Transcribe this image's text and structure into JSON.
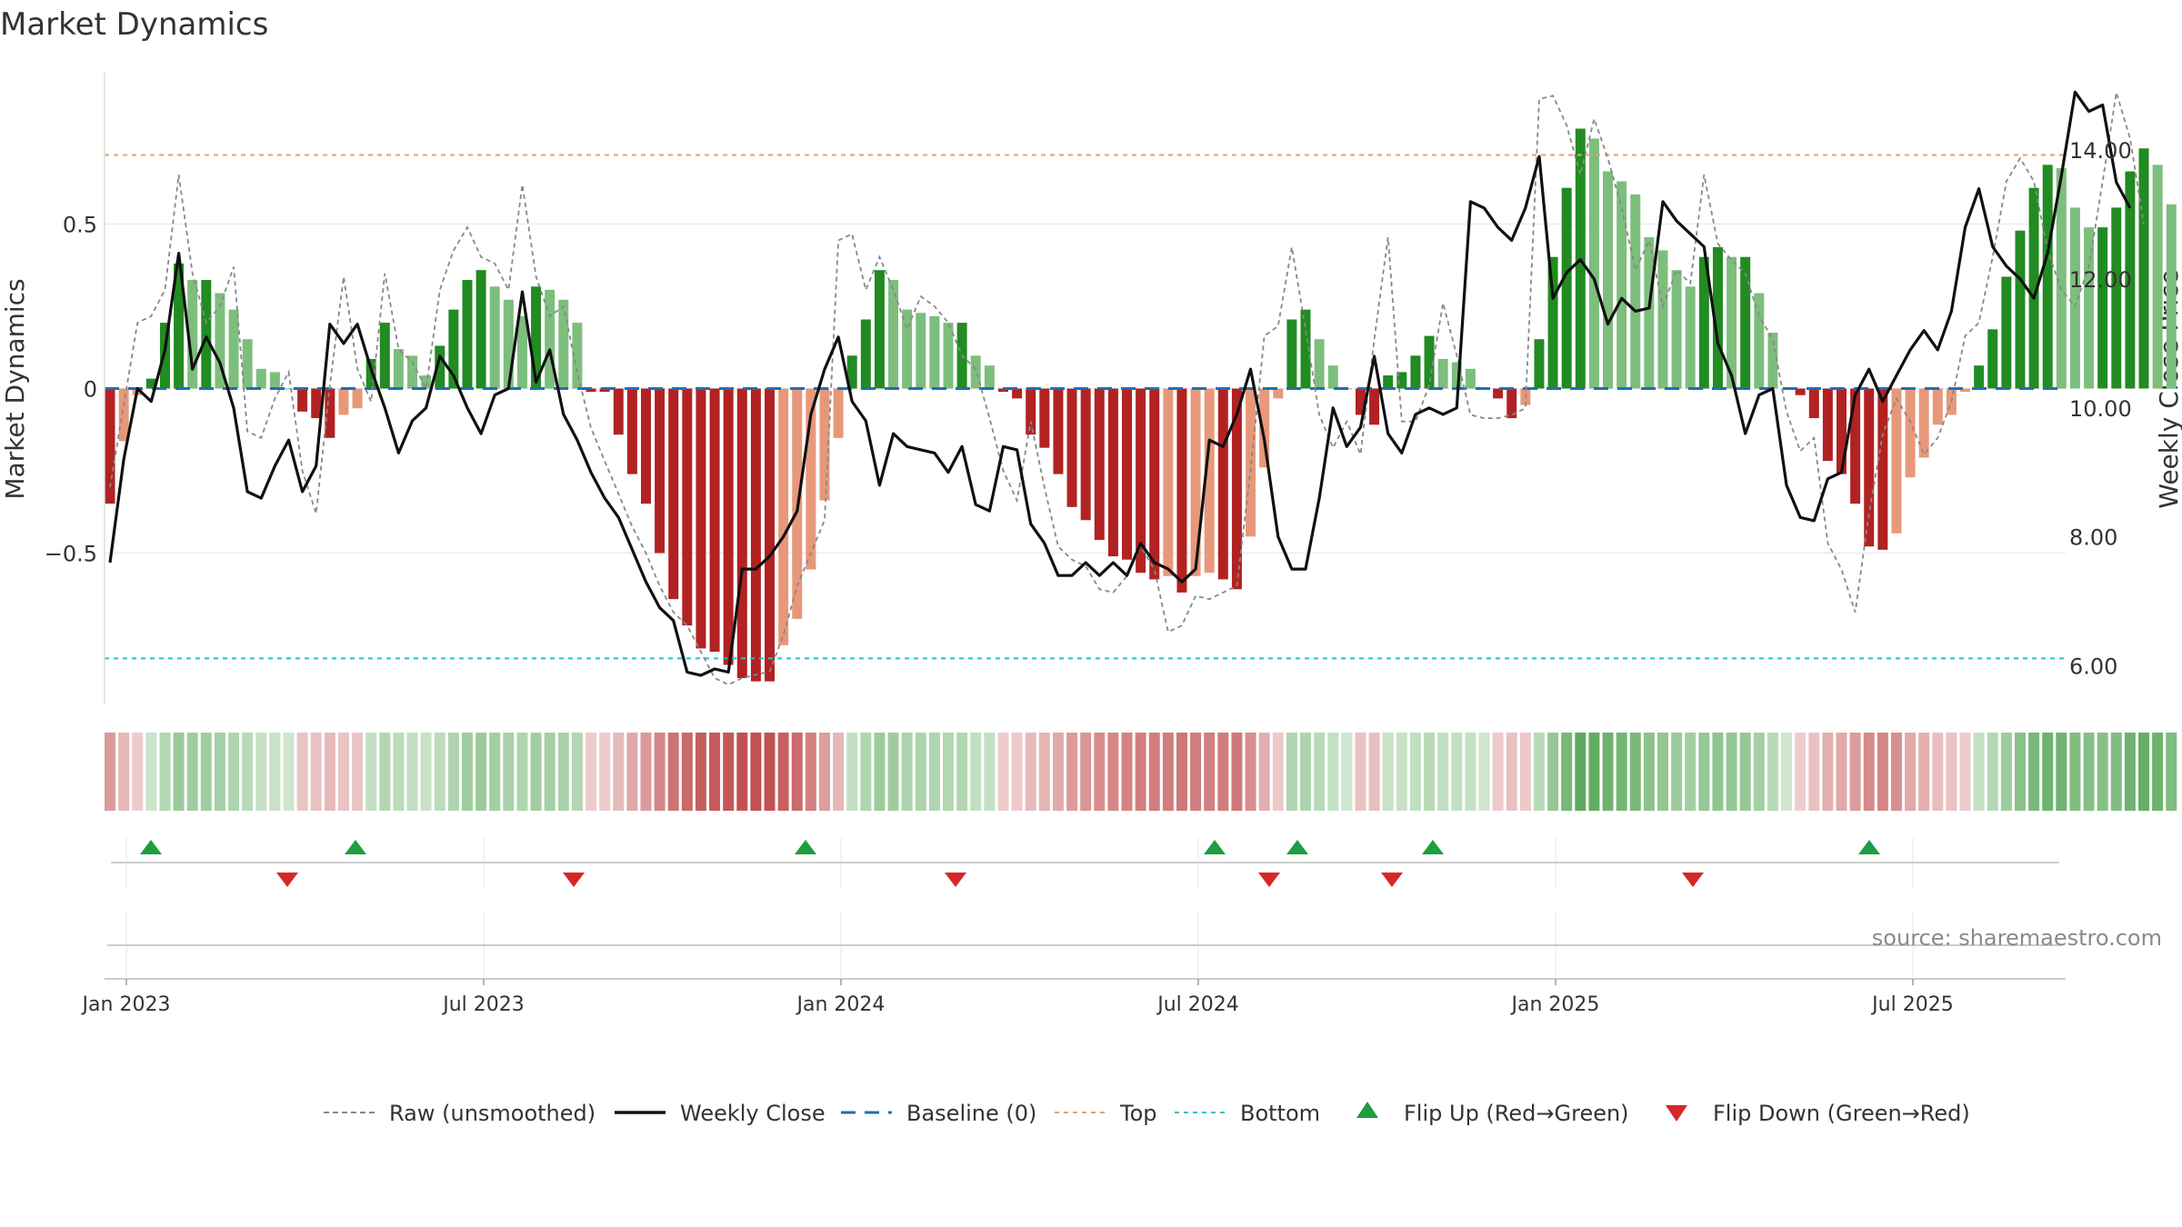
{
  "chart_data": {
    "type": "bar",
    "title": "Market Dynamics",
    "ylabel": "Market Dynamics",
    "y2label": "Weekly Close Price",
    "source": "source: sharemaestro.com",
    "ylim": [
      -0.96,
      0.96
    ],
    "y2lim": [
      5.4,
      15.2
    ],
    "y_ticks": [
      {
        "value": -0.5,
        "label": "−0.5"
      },
      {
        "value": 0,
        "label": "0"
      },
      {
        "value": 0.5,
        "label": "0.5"
      }
    ],
    "y2_ticks": [
      {
        "value": 6,
        "label": "6.00"
      },
      {
        "value": 8,
        "label": "8.00"
      },
      {
        "value": 10,
        "label": "10.00"
      },
      {
        "value": 12,
        "label": "12.00"
      },
      {
        "value": 14,
        "label": "14.00"
      }
    ],
    "x_ticks": [
      {
        "week": 0,
        "label": "Jan 2023"
      },
      {
        "week": 26,
        "label": "Jul 2023"
      },
      {
        "week": 52,
        "label": "Jan 2024"
      },
      {
        "week": 78,
        "label": "Jul 2024"
      },
      {
        "week": 104,
        "label": "Jan 2025"
      },
      {
        "week": 130,
        "label": "Jul 2025"
      }
    ],
    "reference_lines": {
      "baseline": 0,
      "top": 0.71,
      "bottom": -0.82
    },
    "momentum": [
      -0.35,
      -0.16,
      -0.02,
      0.03,
      0.2,
      0.38,
      0.33,
      0.33,
      0.29,
      0.24,
      0.15,
      0.06,
      0.05,
      0.0,
      -0.07,
      -0.09,
      -0.15,
      -0.08,
      -0.06,
      0.09,
      0.2,
      0.12,
      0.1,
      0.04,
      0.13,
      0.24,
      0.33,
      0.36,
      0.31,
      0.27,
      0.22,
      0.31,
      0.3,
      0.27,
      0.2,
      -0.01,
      -0.01,
      -0.14,
      -0.26,
      -0.35,
      -0.5,
      -0.64,
      -0.72,
      -0.79,
      -0.8,
      -0.84,
      -0.88,
      -0.89,
      -0.89,
      -0.78,
      -0.7,
      -0.55,
      -0.34,
      -0.15,
      0.1,
      0.21,
      0.36,
      0.33,
      0.24,
      0.23,
      0.22,
      0.2,
      0.2,
      0.1,
      0.07,
      -0.01,
      -0.03,
      -0.14,
      -0.18,
      -0.26,
      -0.36,
      -0.4,
      -0.46,
      -0.51,
      -0.52,
      -0.56,
      -0.58,
      -0.57,
      -0.62,
      -0.57,
      -0.56,
      -0.58,
      -0.61,
      -0.45,
      -0.24,
      -0.03,
      0.21,
      0.24,
      0.15,
      0.07,
      0.0,
      -0.08,
      -0.11,
      0.04,
      0.05,
      0.1,
      0.16,
      0.09,
      0.08,
      0.06,
      0.0,
      -0.03,
      -0.09,
      -0.05,
      0.15,
      0.4,
      0.61,
      0.79,
      0.76,
      0.66,
      0.63,
      0.59,
      0.46,
      0.42,
      0.36,
      0.31,
      0.4,
      0.43,
      0.4,
      0.4,
      0.29,
      0.17,
      0.0,
      -0.02,
      -0.09,
      -0.22,
      -0.26,
      -0.35,
      -0.48,
      -0.49,
      -0.44,
      -0.27,
      -0.21,
      -0.11,
      -0.08,
      -0.01,
      0.07,
      0.18,
      0.34,
      0.48,
      0.61,
      0.68,
      0.67,
      0.55,
      0.49,
      0.49,
      0.55,
      0.66,
      0.73,
      0.68,
      0.56
    ],
    "raw": [
      -0.3,
      -0.05,
      0.2,
      0.22,
      0.3,
      0.65,
      0.35,
      0.2,
      0.25,
      0.37,
      -0.13,
      -0.15,
      -0.03,
      0.05,
      -0.25,
      -0.38,
      0.01,
      0.34,
      0.06,
      -0.04,
      0.35,
      0.12,
      0.08,
      0.0,
      0.3,
      0.42,
      0.49,
      0.4,
      0.38,
      0.3,
      0.62,
      0.34,
      0.22,
      0.25,
      0.05,
      -0.12,
      -0.22,
      -0.32,
      -0.42,
      -0.5,
      -0.6,
      -0.68,
      -0.72,
      -0.8,
      -0.88,
      -0.9,
      -0.88,
      -0.87,
      -0.86,
      -0.75,
      -0.6,
      -0.5,
      -0.4,
      0.45,
      0.47,
      0.3,
      0.4,
      0.3,
      0.18,
      0.28,
      0.25,
      0.2,
      0.1,
      0.06,
      -0.09,
      -0.25,
      -0.34,
      -0.1,
      -0.3,
      -0.48,
      -0.52,
      -0.54,
      -0.61,
      -0.62,
      -0.57,
      -0.48,
      -0.55,
      -0.74,
      -0.72,
      -0.63,
      -0.64,
      -0.62,
      -0.6,
      -0.25,
      0.16,
      0.19,
      0.43,
      0.18,
      -0.08,
      -0.18,
      -0.1,
      -0.2,
      0.15,
      0.46,
      -0.1,
      -0.1,
      0.01,
      0.26,
      0.1,
      -0.08,
      -0.09,
      -0.09,
      -0.08,
      -0.06,
      0.88,
      0.89,
      0.8,
      0.65,
      0.82,
      0.7,
      0.55,
      0.36,
      0.45,
      0.25,
      0.36,
      0.32,
      0.65,
      0.44,
      0.39,
      0.35,
      0.22,
      0.15,
      -0.07,
      -0.19,
      -0.15,
      -0.47,
      -0.55,
      -0.68,
      -0.38,
      -0.14,
      -0.03,
      -0.1,
      -0.2,
      -0.15,
      -0.04,
      0.16,
      0.2,
      0.4,
      0.63,
      0.7,
      0.63,
      0.42,
      0.3,
      0.25,
      0.37,
      0.63,
      0.9,
      0.76,
      0.5
    ],
    "close": [
      7.6,
      9.2,
      10.3,
      10.1,
      10.9,
      12.4,
      10.6,
      11.1,
      10.7,
      10.0,
      8.7,
      8.6,
      9.1,
      9.5,
      8.7,
      9.1,
      11.3,
      11.0,
      11.3,
      10.6,
      10.0,
      9.3,
      9.8,
      10.0,
      10.8,
      10.5,
      10.0,
      9.6,
      10.2,
      10.3,
      11.8,
      10.4,
      10.9,
      9.9,
      9.5,
      9.0,
      8.6,
      8.3,
      7.8,
      7.3,
      6.9,
      6.7,
      5.9,
      5.85,
      5.95,
      5.9,
      7.5,
      7.5,
      7.7,
      8.0,
      8.4,
      9.9,
      10.6,
      11.1,
      10.1,
      9.8,
      8.8,
      9.6,
      9.4,
      9.35,
      9.3,
      9.0,
      9.4,
      8.5,
      8.4,
      9.4,
      9.35,
      8.2,
      7.9,
      7.4,
      7.4,
      7.6,
      7.4,
      7.6,
      7.4,
      7.9,
      7.6,
      7.5,
      7.3,
      7.5,
      9.5,
      9.4,
      9.9,
      10.6,
      9.5,
      8.0,
      7.5,
      7.5,
      8.6,
      10.0,
      9.4,
      9.7,
      10.8,
      9.6,
      9.3,
      9.9,
      10.0,
      9.9,
      10.0,
      13.2,
      13.1,
      12.8,
      12.6,
      13.1,
      13.9,
      11.7,
      12.1,
      12.3,
      12.0,
      11.3,
      11.7,
      11.5,
      11.55,
      13.2,
      12.9,
      12.7,
      12.5,
      11.0,
      10.5,
      9.6,
      10.2,
      10.3,
      8.8,
      8.3,
      8.25,
      8.9,
      9.0,
      10.2,
      10.6,
      10.1,
      10.5,
      10.9,
      11.2,
      10.9,
      11.5,
      12.8,
      13.4,
      12.5,
      12.2,
      12.0,
      11.7,
      12.4,
      13.6,
      14.9,
      14.6,
      14.7,
      13.5,
      13.1
    ],
    "flip_up_weeks": [
      1,
      10,
      31,
      50,
      54,
      59,
      79,
      84
    ],
    "flip_down_weeks": [
      7,
      19,
      35,
      56,
      63,
      74
    ],
    "legend": {
      "position": "bottom",
      "items": [
        {
          "label": "Raw (unsmoothed)",
          "key": "raw"
        },
        {
          "label": "Weekly Close",
          "key": "close"
        },
        {
          "label": "Baseline (0)",
          "key": "baseline"
        },
        {
          "label": "Top",
          "key": "top"
        },
        {
          "label": "Bottom",
          "key": "bottom"
        },
        {
          "label": "Flip Up (Red→Green)",
          "key": "flip-up"
        },
        {
          "label": "Flip Down (Green→Red)",
          "key": "flip-down"
        }
      ]
    },
    "colors": {
      "pos_strong": "#228B22",
      "pos_weak": "#7DBE7D",
      "neg_strong": "#B22222",
      "neg_weak": "#E8987A",
      "raw": "#888888",
      "close": "#111111",
      "baseline": "#1F6FB4",
      "top": "#E8A066",
      "bottom": "#22C4C4",
      "flip_up": "#1E9E3E",
      "flip_down": "#D62728"
    }
  }
}
